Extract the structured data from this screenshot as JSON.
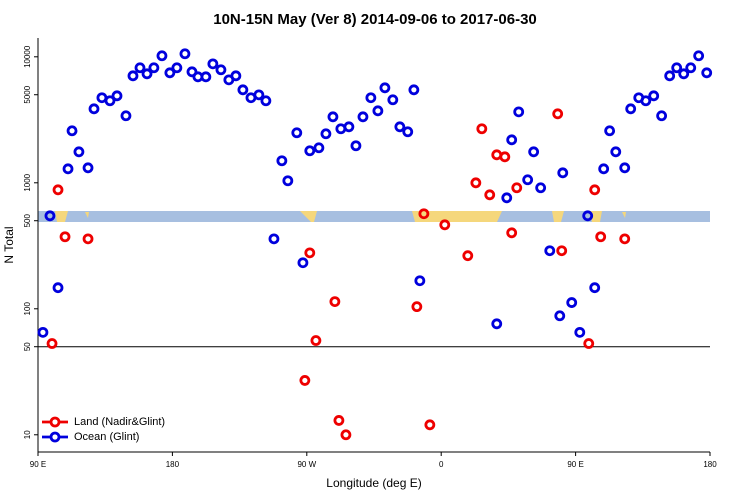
{
  "chart_data": {
    "type": "scatter",
    "title": "10N-15N May (Ver 8)   2014-09-06 to 2017-06-30",
    "x_label": "Longitude (deg E)",
    "y_label": "N Total",
    "xlim": [
      90,
      540
    ],
    "ylim": [
      7.3,
      14100
    ],
    "log_y": true,
    "xticks": [
      {
        "value": 90,
        "label": "90 E"
      },
      180,
      {
        "value": 270,
        "label": "90 W"
      },
      {
        "value": 360,
        "label": "0"
      },
      {
        "value": 450,
        "label": "90 E"
      },
      {
        "value": 540,
        "label": "180"
      }
    ],
    "yticks": [
      10,
      50,
      100,
      500,
      1000,
      5000,
      10000
    ],
    "reference_line": 50,
    "legend": "bottomleft",
    "series": [
      {
        "name": "Land (Nadir&Glint)",
        "color": "#ee0000",
        "x": [
          99.4,
          103.4,
          108.1,
          123.5,
          272.0,
          268.7,
          276.1,
          288.8,
          291.5,
          296.2,
          343.7,
          348.4,
          352.4,
          362.4,
          377.8,
          383.2,
          387.2,
          392.5,
          397.2,
          402.6,
          407.2,
          410.6,
          438.0,
          440.7,
          458.8,
          462.8,
          466.8,
          482.9
        ],
        "values": [
          53,
          880,
          373,
          359,
          278,
          27,
          56,
          114,
          13,
          10,
          104,
          568,
          12,
          464,
          264,
          1000,
          2685,
          803,
          1667,
          1607,
          401,
          913,
          3529,
          289,
          53,
          880,
          373,
          359
        ]
      },
      {
        "name": "Ocean (Glint)",
        "color": "#0000dd",
        "x": [
          93.3,
          98.0,
          103.4,
          110.1,
          112.8,
          117.4,
          123.5,
          127.5,
          132.8,
          138.2,
          142.9,
          148.9,
          153.6,
          158.3,
          163.0,
          167.6,
          173.0,
          178.3,
          183.0,
          188.4,
          193.1,
          197.1,
          202.4,
          207.1,
          212.5,
          217.8,
          222.5,
          227.2,
          232.6,
          237.9,
          242.6,
          248.0,
          253.3,
          257.3,
          263.3,
          267.4,
          272.0,
          278.1,
          282.8,
          287.5,
          292.8,
          298.2,
          302.9,
          307.6,
          312.9,
          317.6,
          322.3,
          327.6,
          332.3,
          337.6,
          341.7,
          345.7,
          397.2,
          403.9,
          407.2,
          411.9,
          417.9,
          421.9,
          426.6,
          432.7,
          439.4,
          441.4,
          447.4,
          452.8,
          458.1,
          462.8,
          468.8,
          472.8,
          476.9,
          482.9,
          486.9,
          492.3,
          497.0,
          502.3,
          507.6,
          513.0,
          517.7,
          522.4,
          527.1,
          532.4,
          537.8
        ],
        "values": [
          65,
          547,
          147,
          1291,
          2587,
          1762,
          1315,
          3864,
          4732,
          4477,
          4900,
          3404,
          7063,
          8185,
          7328,
          8185,
          10190,
          7464,
          8185,
          10570,
          7603,
          6934,
          6934,
          8790,
          7890,
          6561,
          7063,
          5470,
          4732,
          4990,
          4477,
          359,
          1496,
          1038,
          2495,
          232,
          1795,
          1897,
          2449,
          3341,
          2685,
          2782,
          1968,
          3341,
          4732,
          3726,
          5675,
          4560,
          2782,
          2541,
          5470,
          167,
          76,
          760,
          2193,
          3656,
          1057,
          1762,
          913,
          289,
          88,
          1200,
          112,
          65,
          547,
          147,
          1291,
          2587,
          1762,
          1315,
          3864,
          4732,
          4477,
          4900,
          3404,
          7063,
          8185,
          7328,
          8185,
          10190,
          7464
        ]
      }
    ]
  }
}
